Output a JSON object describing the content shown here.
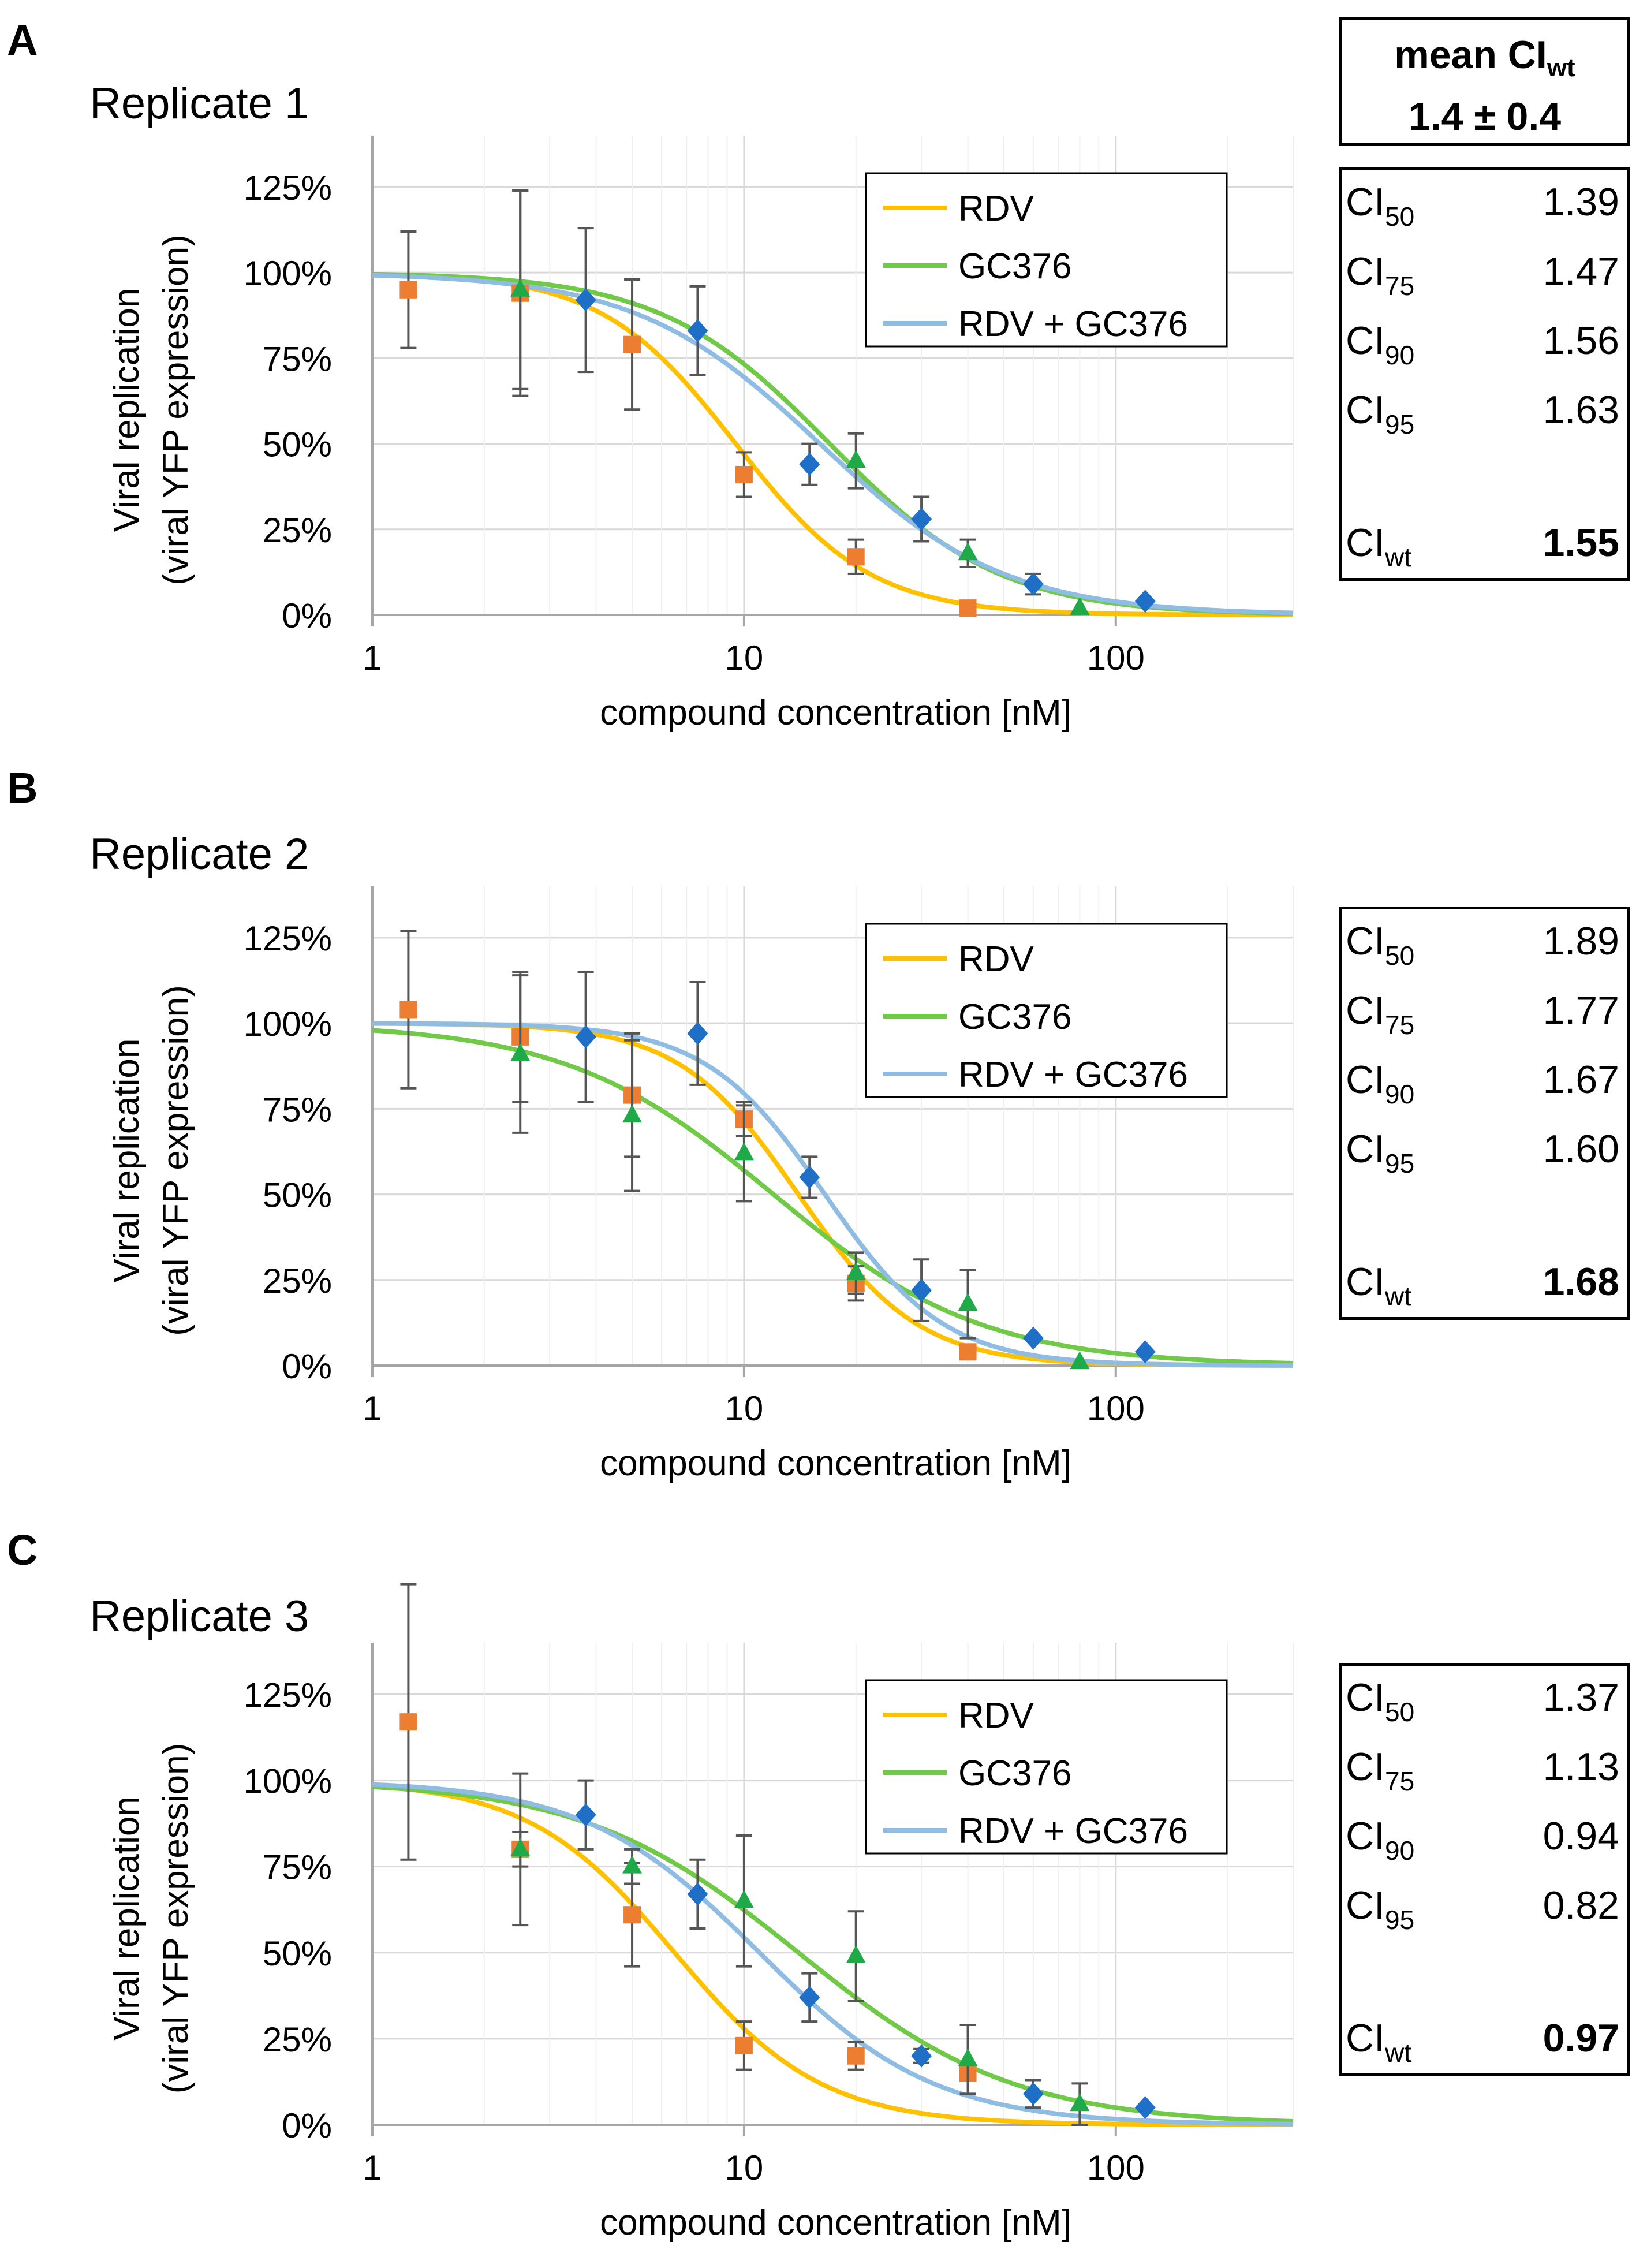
{
  "mean_box": {
    "title": "mean CI",
    "title_sub": "wt",
    "value": "1.4 ± 0.4"
  },
  "chart_data": [
    {
      "panel": "A",
      "type": "line",
      "title": "Replicate 1",
      "xlabel": "compound concentration [nM]",
      "ylabel": [
        "Viral replication",
        "(viral YFP expression)"
      ],
      "xscale": "log",
      "xlim": [
        1,
        300
      ],
      "ylim": [
        0,
        1.4
      ],
      "xticks": [
        1,
        10,
        100
      ],
      "xtick_labels": [
        "1",
        "10",
        "100"
      ],
      "yticks": [
        0,
        0.25,
        0.5,
        0.75,
        1.0,
        1.25
      ],
      "ytick_labels": [
        "0%",
        "25%",
        "50%",
        "75%",
        "100%",
        "125%"
      ],
      "legend_position": "top-right",
      "series": [
        {
          "name": "RDV",
          "color": "#FFC000",
          "marker": "square",
          "marker_color": "#ED7D31",
          "fit": {
            "ic50": 9.5,
            "hill": 2.4
          },
          "points": [
            [
              1.25,
              0.95,
              0.17
            ],
            [
              2.5,
              0.94,
              0.3
            ],
            [
              5,
              0.79,
              0.19
            ],
            [
              10,
              0.41,
              0.065
            ],
            [
              20,
              0.17,
              0.05
            ],
            [
              40,
              0.02,
              0.0
            ]
          ]
        },
        {
          "name": "GC376",
          "color": "#70C947",
          "marker": "triangle",
          "marker_color": "#1FAA4A",
          "fit": {
            "ic50": 17,
            "hill": 1.9
          },
          "points": [
            [
              2.5,
              0.95,
              0.29
            ],
            [
              20,
              0.45,
              0.08
            ],
            [
              40,
              0.18,
              0.04
            ],
            [
              80,
              0.02,
              0.0
            ]
          ]
        },
        {
          "name": "RDV + GC376",
          "color": "#8FBCE3",
          "marker": "diamond",
          "marker_color": "#1F6FC6",
          "fit": {
            "ic50": 16,
            "hill": 1.75
          },
          "points": [
            [
              3.75,
              0.92,
              0.21
            ],
            [
              7.5,
              0.83,
              0.13
            ],
            [
              15,
              0.44,
              0.06
            ],
            [
              30,
              0.28,
              0.065
            ],
            [
              60,
              0.09,
              0.03
            ],
            [
              120,
              0.04,
              0.0
            ]
          ]
        }
      ],
      "ci_table": [
        {
          "label": "CI",
          "sub": "50",
          "value": "1.39"
        },
        {
          "label": "CI",
          "sub": "75",
          "value": "1.47"
        },
        {
          "label": "CI",
          "sub": "90",
          "value": "1.56"
        },
        {
          "label": "CI",
          "sub": "95",
          "value": "1.63"
        },
        {
          "label": "CI",
          "sub": "wt",
          "value": "1.55",
          "bold": true
        }
      ]
    },
    {
      "panel": "B",
      "type": "line",
      "title": "Replicate 2",
      "xlabel": "compound concentration [nM]",
      "ylabel": [
        "Viral replication",
        "(viral YFP expression)"
      ],
      "xscale": "log",
      "xlim": [
        1,
        300
      ],
      "ylim": [
        0,
        1.4
      ],
      "xticks": [
        1,
        10,
        100
      ],
      "xtick_labels": [
        "1",
        "10",
        "100"
      ],
      "yticks": [
        0,
        0.25,
        0.5,
        0.75,
        1.0,
        1.25
      ],
      "ytick_labels": [
        "0%",
        "25%",
        "50%",
        "75%",
        "100%",
        "125%"
      ],
      "legend_position": "top-right",
      "series": [
        {
          "name": "RDV",
          "color": "#FFC000",
          "marker": "square",
          "marker_color": "#ED7D31",
          "fit": {
            "ic50": 14,
            "hill": 2.7
          },
          "points": [
            [
              1.25,
              1.04,
              0.23
            ],
            [
              2.5,
              0.96,
              0.19
            ],
            [
              5,
              0.79,
              0.18
            ],
            [
              10,
              0.72,
              0.05
            ],
            [
              20,
              0.24,
              0.05
            ],
            [
              40,
              0.04,
              0.0
            ]
          ]
        },
        {
          "name": "GC376",
          "color": "#70C947",
          "marker": "triangle",
          "marker_color": "#1FAA4A",
          "fit": {
            "ic50": 12,
            "hill": 1.55
          },
          "points": [
            [
              2.5,
              0.91,
              0.23
            ],
            [
              5,
              0.73,
              0.22
            ],
            [
              10,
              0.62,
              0.14
            ],
            [
              20,
              0.27,
              0.06
            ],
            [
              40,
              0.18,
              0.1
            ],
            [
              80,
              0.01,
              0.0
            ]
          ]
        },
        {
          "name": "RDV + GC376",
          "color": "#8FBCE3",
          "marker": "diamond",
          "marker_color": "#1F6FC6",
          "fit": {
            "ic50": 16.5,
            "hill": 2.7
          },
          "points": [
            [
              3.75,
              0.96,
              0.19
            ],
            [
              7.5,
              0.97,
              0.15
            ],
            [
              15,
              0.55,
              0.06
            ],
            [
              30,
              0.22,
              0.09
            ],
            [
              60,
              0.08,
              0.0
            ],
            [
              120,
              0.04,
              0.0
            ]
          ]
        }
      ],
      "ci_table": [
        {
          "label": "CI",
          "sub": "50",
          "value": "1.89"
        },
        {
          "label": "CI",
          "sub": "75",
          "value": "1.77"
        },
        {
          "label": "CI",
          "sub": "90",
          "value": "1.67"
        },
        {
          "label": "CI",
          "sub": "95",
          "value": "1.60"
        },
        {
          "label": "CI",
          "sub": "wt",
          "value": "1.68",
          "bold": true
        }
      ]
    },
    {
      "panel": "C",
      "type": "line",
      "title": "Replicate 3",
      "xlabel": "compound concentration [nM]",
      "ylabel": [
        "Viral replication",
        "(viral YFP expression)"
      ],
      "xscale": "log",
      "xlim": [
        1,
        300
      ],
      "ylim": [
        0,
        1.4
      ],
      "xticks": [
        1,
        10,
        100
      ],
      "xtick_labels": [
        "1",
        "10",
        "100"
      ],
      "yticks": [
        0,
        0.25,
        0.5,
        0.75,
        1.0,
        1.25
      ],
      "ytick_labels": [
        "0%",
        "25%",
        "50%",
        "75%",
        "100%",
        "125%"
      ],
      "legend_position": "top-right",
      "series": [
        {
          "name": "RDV",
          "color": "#FFC000",
          "marker": "square",
          "marker_color": "#ED7D31",
          "fit": {
            "ic50": 6.5,
            "hill": 2.2
          },
          "points": [
            [
              1.25,
              1.17,
              0.4
            ],
            [
              2.5,
              0.8,
              0.22
            ],
            [
              5,
              0.61,
              0.15
            ],
            [
              10,
              0.23,
              0.07
            ],
            [
              20,
              0.2,
              0.04
            ],
            [
              40,
              0.15,
              0.0
            ]
          ]
        },
        {
          "name": "GC376",
          "color": "#70C947",
          "marker": "triangle",
          "marker_color": "#1FAA4A",
          "fit": {
            "ic50": 14,
            "hill": 1.5
          },
          "points": [
            [
              2.5,
              0.8,
              0.05
            ],
            [
              5,
              0.75,
              0.05
            ],
            [
              10,
              0.65,
              0.19
            ],
            [
              20,
              0.49,
              0.13
            ],
            [
              40,
              0.19,
              0.1
            ],
            [
              80,
              0.06,
              0.06
            ]
          ]
        },
        {
          "name": "RDV + GC376",
          "color": "#8FBCE3",
          "marker": "diamond",
          "marker_color": "#1F6FC6",
          "fit": {
            "ic50": 11,
            "hill": 1.85
          },
          "points": [
            [
              3.75,
              0.9,
              0.1
            ],
            [
              7.5,
              0.67,
              0.1
            ],
            [
              15,
              0.37,
              0.07
            ],
            [
              30,
              0.2,
              0.02
            ],
            [
              60,
              0.09,
              0.04
            ],
            [
              120,
              0.05,
              0.0
            ]
          ]
        }
      ],
      "ci_table": [
        {
          "label": "CI",
          "sub": "50",
          "value": "1.37"
        },
        {
          "label": "CI",
          "sub": "75",
          "value": "1.13"
        },
        {
          "label": "CI",
          "sub": "90",
          "value": "0.94"
        },
        {
          "label": "CI",
          "sub": "95",
          "value": "0.82"
        },
        {
          "label": "CI",
          "sub": "wt",
          "value": "0.97",
          "bold": true
        }
      ]
    }
  ]
}
